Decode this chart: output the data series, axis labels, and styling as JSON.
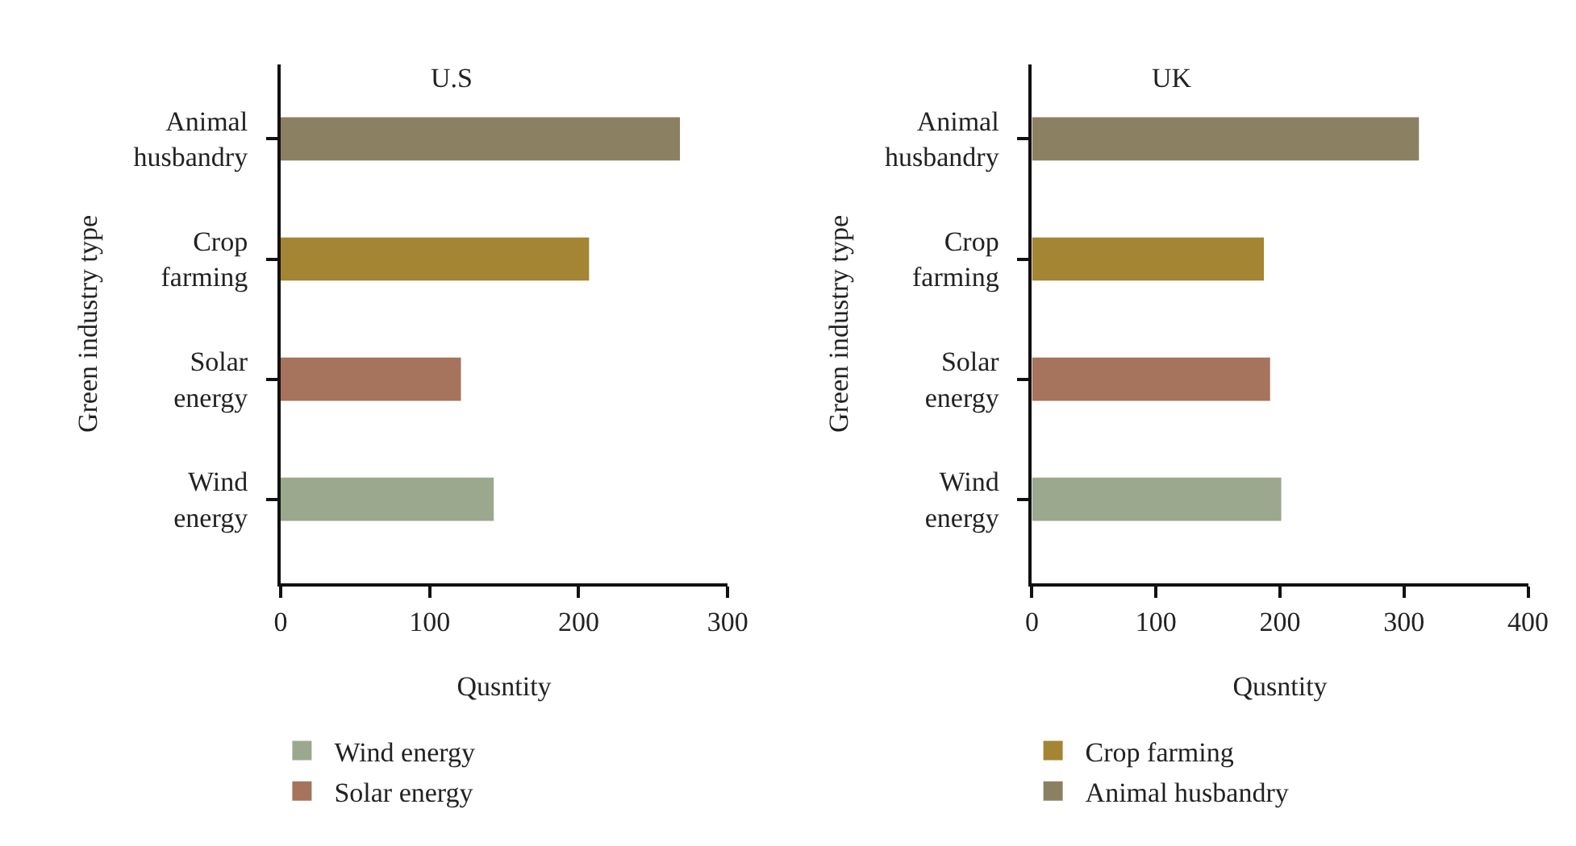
{
  "chart_data": [
    {
      "type": "bar",
      "orientation": "horizontal",
      "title": "U.S",
      "xlabel": "Qusntity",
      "ylabel": "Green industry type",
      "categories": [
        "Animal husbandry",
        "Crop farming",
        "Solar energy",
        "Wind energy"
      ],
      "series": [
        {
          "name": "Wind energy",
          "color": "#9ca88e",
          "values": [
            null,
            null,
            null,
            143
          ]
        },
        {
          "name": "Solar energy",
          "color": "#a6735c",
          "values": [
            null,
            null,
            121,
            null
          ]
        },
        {
          "name": "Crop farming",
          "color": "#a38533",
          "values": [
            null,
            207,
            null,
            null
          ]
        },
        {
          "name": "Animal husbandry",
          "color": "#8c8063",
          "values": [
            268,
            null,
            null,
            null
          ]
        }
      ],
      "xlim": [
        0,
        300
      ],
      "xticks": [
        0,
        100,
        200,
        300
      ],
      "legend": "bottom"
    },
    {
      "type": "bar",
      "orientation": "horizontal",
      "title": "UK",
      "xlabel": "Qusntity",
      "ylabel": "Green industry type",
      "categories": [
        "Animal husbandry",
        "Crop farming",
        "Solar energy",
        "Wind energy"
      ],
      "series": [
        {
          "name": "Wind energy",
          "color": "#9ca88e",
          "values": [
            null,
            null,
            null,
            201
          ]
        },
        {
          "name": "Solar energy",
          "color": "#a6735c",
          "values": [
            null,
            null,
            192,
            null
          ]
        },
        {
          "name": "Crop farming",
          "color": "#a38533",
          "values": [
            null,
            187,
            null,
            null
          ]
        },
        {
          "name": "Animal husbandry",
          "color": "#8c8063",
          "values": [
            312,
            null,
            null,
            null
          ]
        }
      ],
      "xlim": [
        0,
        400
      ],
      "xticks": [
        0,
        100,
        200,
        300,
        400
      ],
      "legend": "bottom"
    }
  ]
}
